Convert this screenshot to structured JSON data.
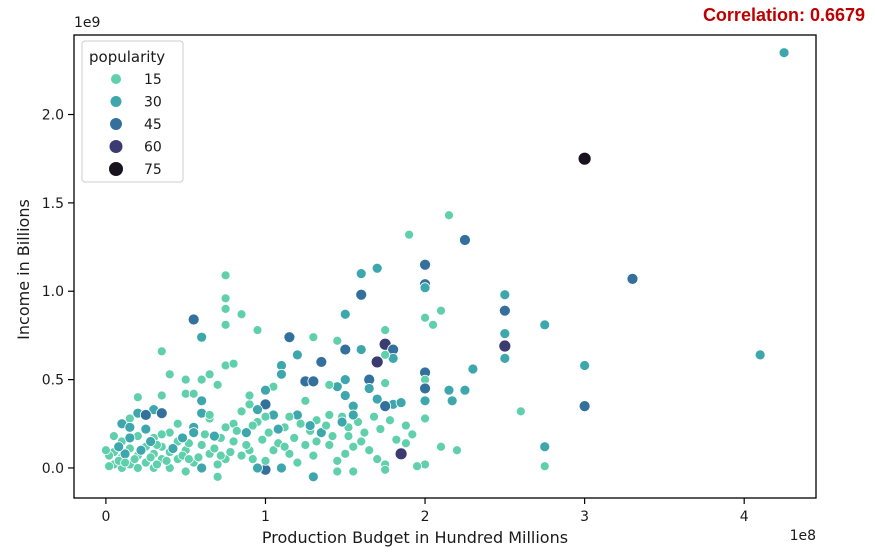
{
  "annotation": "Correlation: 0.6679",
  "chart_data": {
    "type": "scatter",
    "title": "",
    "xlabel": "Production Budget in Hundred Millions",
    "ylabel": "Income in Billions",
    "x_offset_label": "1e8",
    "y_offset_label": "1e9",
    "xlim": [
      -0.2,
      4.45
    ],
    "ylim": [
      -0.17,
      2.45
    ],
    "xticks": [
      0,
      1,
      2,
      3,
      4
    ],
    "xtick_labels": [
      "0",
      "1",
      "2",
      "3",
      "4"
    ],
    "yticks": [
      0,
      0.5,
      1.0,
      1.5,
      2.0
    ],
    "ytick_labels": [
      "0.0",
      "0.5",
      "1.0",
      "1.5",
      "2.0"
    ],
    "grid": false,
    "legend": {
      "title": "popularity",
      "position": "top-left",
      "entries": [
        {
          "label": "15",
          "color": "#5fcfac",
          "size": 7
        },
        {
          "label": "30",
          "color": "#3ea7ad",
          "size": 8
        },
        {
          "label": "45",
          "color": "#33709c",
          "size": 9
        },
        {
          "label": "60",
          "color": "#3b3b72",
          "size": 10
        },
        {
          "label": "75",
          "color": "#18131f",
          "size": 11
        }
      ]
    },
    "points": [
      [
        4.25,
        2.35,
        30
      ],
      [
        3.0,
        1.75,
        75
      ],
      [
        3.3,
        1.07,
        45
      ],
      [
        4.1,
        0.64,
        30
      ],
      [
        2.25,
        1.29,
        45
      ],
      [
        2.15,
        1.43,
        15
      ],
      [
        1.9,
        1.32,
        15
      ],
      [
        2.0,
        1.15,
        45
      ],
      [
        2.0,
        1.04,
        45
      ],
      [
        2.0,
        1.02,
        30
      ],
      [
        2.0,
        0.85,
        15
      ],
      [
        2.05,
        0.81,
        15
      ],
      [
        2.1,
        0.89,
        15
      ],
      [
        1.7,
        1.13,
        30
      ],
      [
        1.6,
        1.1,
        30
      ],
      [
        1.6,
        0.98,
        45
      ],
      [
        1.5,
        0.87,
        30
      ],
      [
        2.5,
        0.98,
        30
      ],
      [
        2.5,
        0.89,
        45
      ],
      [
        2.5,
        0.76,
        30
      ],
      [
        2.5,
        0.69,
        60
      ],
      [
        2.5,
        0.62,
        30
      ],
      [
        2.75,
        0.81,
        30
      ],
      [
        3.0,
        0.58,
        30
      ],
      [
        3.0,
        0.35,
        45
      ],
      [
        2.6,
        0.32,
        15
      ],
      [
        2.75,
        0.12,
        30
      ],
      [
        2.75,
        0.01,
        15
      ],
      [
        2.3,
        0.56,
        30
      ],
      [
        2.25,
        0.44,
        30
      ],
      [
        2.15,
        0.44,
        30
      ],
      [
        2.17,
        0.38,
        30
      ],
      [
        2.2,
        0.1,
        15
      ],
      [
        2.0,
        0.54,
        45
      ],
      [
        2.0,
        0.5,
        15
      ],
      [
        2.0,
        0.45,
        45
      ],
      [
        2.0,
        0.38,
        30
      ],
      [
        2.0,
        0.28,
        15
      ],
      [
        2.0,
        0.02,
        15
      ],
      [
        1.95,
        0.01,
        15
      ],
      [
        2.1,
        0.12,
        15
      ],
      [
        1.85,
        0.08,
        60
      ],
      [
        1.75,
        0.7,
        60
      ],
      [
        1.7,
        0.6,
        60
      ],
      [
        1.8,
        0.67,
        45
      ],
      [
        1.8,
        0.62,
        30
      ],
      [
        1.75,
        0.78,
        15
      ],
      [
        1.75,
        0.64,
        15
      ],
      [
        1.65,
        0.5,
        45
      ],
      [
        1.65,
        0.45,
        30
      ],
      [
        1.75,
        0.48,
        15
      ],
      [
        1.8,
        0.36,
        30
      ],
      [
        1.75,
        0.35,
        45
      ],
      [
        1.85,
        0.37,
        30
      ],
      [
        1.6,
        0.67,
        30
      ],
      [
        1.55,
        0.35,
        30
      ],
      [
        1.5,
        0.67,
        45
      ],
      [
        1.45,
        0.72,
        15
      ],
      [
        1.5,
        0.5,
        30
      ],
      [
        1.5,
        0.41,
        30
      ],
      [
        1.45,
        0.46,
        30
      ],
      [
        1.4,
        0.47,
        15
      ],
      [
        1.35,
        0.6,
        45
      ],
      [
        1.3,
        0.74,
        15
      ],
      [
        1.25,
        0.49,
        45
      ],
      [
        1.3,
        0.49,
        45
      ],
      [
        1.2,
        0.64,
        30
      ],
      [
        1.15,
        0.74,
        45
      ],
      [
        1.1,
        0.58,
        30
      ],
      [
        1.1,
        0.53,
        30
      ],
      [
        1.2,
        0.3,
        30
      ],
      [
        1.05,
        0.46,
        15
      ],
      [
        1.0,
        0.44,
        30
      ],
      [
        1.0,
        0.36,
        45
      ],
      [
        0.95,
        0.33,
        30
      ],
      [
        1.05,
        0.3,
        30
      ],
      [
        1.0,
        0.29,
        15
      ],
      [
        0.95,
        0.26,
        15
      ],
      [
        0.9,
        0.36,
        15
      ],
      [
        0.8,
        0.25,
        15
      ],
      [
        0.75,
        1.09,
        15
      ],
      [
        0.75,
        0.96,
        15
      ],
      [
        0.75,
        0.9,
        15
      ],
      [
        0.75,
        0.81,
        15
      ],
      [
        0.75,
        0.58,
        15
      ],
      [
        0.65,
        0.53,
        15
      ],
      [
        0.55,
        0.84,
        45
      ],
      [
        0.6,
        0.74,
        30
      ],
      [
        0.35,
        0.66,
        15
      ],
      [
        0.4,
        0.53,
        15
      ],
      [
        0.5,
        0.5,
        15
      ],
      [
        0.6,
        0.5,
        15
      ],
      [
        0.7,
        0.47,
        15
      ],
      [
        0.35,
        0.41,
        15
      ],
      [
        0.5,
        0.42,
        15
      ],
      [
        0.55,
        0.42,
        15
      ],
      [
        0.2,
        0.4,
        15
      ],
      [
        0.3,
        0.33,
        30
      ],
      [
        0.35,
        0.31,
        45
      ],
      [
        0.2,
        0.31,
        30
      ],
      [
        0.15,
        0.28,
        15
      ],
      [
        0.1,
        0.25,
        30
      ],
      [
        0.15,
        0.23,
        30
      ],
      [
        0.25,
        0.3,
        45
      ],
      [
        0.6,
        0.38,
        30
      ],
      [
        0.6,
        0.31,
        30
      ],
      [
        0.65,
        0.28,
        15
      ],
      [
        0.55,
        0.23,
        30
      ],
      [
        0.85,
        0.87,
        15
      ],
      [
        0.95,
        0.78,
        15
      ],
      [
        0.8,
        0.59,
        15
      ],
      [
        0.9,
        0.41,
        15
      ],
      [
        1.4,
        0.3,
        15
      ],
      [
        1.35,
        0.2,
        30
      ],
      [
        1.3,
        0.07,
        15
      ],
      [
        1.3,
        -0.05,
        30
      ],
      [
        1.5,
        0.08,
        15
      ],
      [
        1.55,
        0.12,
        15
      ],
      [
        1.55,
        -0.02,
        15
      ],
      [
        1.6,
        0.15,
        15
      ],
      [
        1.65,
        0.1,
        15
      ],
      [
        1.7,
        0.05,
        15
      ],
      [
        1.75,
        0.02,
        15
      ],
      [
        1.75,
        -0.01,
        15
      ],
      [
        1.45,
        0.04,
        15
      ],
      [
        1.45,
        -0.02,
        15
      ],
      [
        1.4,
        0.13,
        15
      ],
      [
        1.25,
        0.13,
        15
      ],
      [
        1.2,
        0.03,
        15
      ],
      [
        1.15,
        0.08,
        15
      ],
      [
        1.1,
        0.0,
        30
      ],
      [
        1.05,
        0.1,
        15
      ],
      [
        1.0,
        -0.01,
        45
      ],
      [
        1.0,
        0.04,
        15
      ],
      [
        0.95,
        0.0,
        30
      ],
      [
        0.9,
        0.1,
        15
      ],
      [
        0.85,
        0.07,
        15
      ],
      [
        0.8,
        0.15,
        15
      ],
      [
        0.75,
        0.05,
        15
      ],
      [
        0.7,
        -0.05,
        15
      ],
      [
        0.7,
        0.02,
        15
      ],
      [
        0.65,
        0.08,
        15
      ],
      [
        0.6,
        0.0,
        30
      ],
      [
        0.6,
        0.13,
        15
      ],
      [
        0.55,
        0.03,
        15
      ],
      [
        0.5,
        0.1,
        15
      ],
      [
        0.5,
        -0.02,
        15
      ],
      [
        0.45,
        0.05,
        15
      ],
      [
        0.45,
        0.15,
        15
      ],
      [
        0.4,
        0.0,
        15
      ],
      [
        0.4,
        0.09,
        15
      ],
      [
        0.4,
        0.2,
        15
      ],
      [
        0.35,
        0.05,
        15
      ],
      [
        0.35,
        0.12,
        15
      ],
      [
        0.3,
        0.0,
        15
      ],
      [
        0.3,
        0.08,
        15
      ],
      [
        0.3,
        0.17,
        15
      ],
      [
        0.25,
        0.03,
        15
      ],
      [
        0.25,
        0.12,
        15
      ],
      [
        0.2,
        0.0,
        15
      ],
      [
        0.2,
        0.07,
        15
      ],
      [
        0.2,
        0.18,
        15
      ],
      [
        0.15,
        0.02,
        15
      ],
      [
        0.15,
        0.11,
        15
      ],
      [
        0.1,
        0.0,
        15
      ],
      [
        0.1,
        0.06,
        15
      ],
      [
        0.1,
        0.15,
        15
      ],
      [
        0.05,
        0.02,
        15
      ],
      [
        0.05,
        0.09,
        15
      ],
      [
        0.05,
        0.18,
        15
      ],
      [
        0.02,
        0.01,
        15
      ],
      [
        0.02,
        0.07,
        15
      ],
      [
        0.0,
        0.1,
        15
      ],
      [
        0.08,
        0.04,
        15
      ],
      [
        0.12,
        0.08,
        30
      ],
      [
        0.18,
        0.05,
        15
      ],
      [
        0.22,
        0.1,
        30
      ],
      [
        0.28,
        0.06,
        15
      ],
      [
        0.32,
        0.13,
        15
      ],
      [
        0.38,
        0.04,
        15
      ],
      [
        0.42,
        0.11,
        30
      ],
      [
        0.48,
        0.07,
        15
      ],
      [
        0.52,
        0.14,
        15
      ],
      [
        0.58,
        0.06,
        15
      ],
      [
        0.62,
        0.19,
        15
      ],
      [
        0.68,
        0.11,
        15
      ],
      [
        0.72,
        0.17,
        15
      ],
      [
        0.78,
        0.09,
        15
      ],
      [
        0.82,
        0.21,
        15
      ],
      [
        0.88,
        0.13,
        15
      ],
      [
        0.92,
        0.24,
        15
      ],
      [
        0.98,
        0.16,
        15
      ],
      [
        1.02,
        0.2,
        15
      ],
      [
        1.08,
        0.14,
        15
      ],
      [
        1.12,
        0.23,
        15
      ],
      [
        1.18,
        0.17,
        15
      ],
      [
        1.22,
        0.25,
        15
      ],
      [
        1.28,
        0.21,
        15
      ],
      [
        1.32,
        0.27,
        15
      ],
      [
        1.38,
        0.24,
        15
      ],
      [
        1.42,
        0.18,
        15
      ],
      [
        1.48,
        0.29,
        15
      ],
      [
        1.52,
        0.23,
        15
      ],
      [
        1.58,
        0.26,
        15
      ],
      [
        1.62,
        0.2,
        15
      ],
      [
        1.68,
        0.29,
        15
      ],
      [
        1.72,
        0.22,
        15
      ],
      [
        1.78,
        0.27,
        15
      ],
      [
        1.82,
        0.16,
        15
      ],
      [
        1.88,
        0.24,
        15
      ],
      [
        1.92,
        0.19,
        15
      ],
      [
        1.88,
        0.14,
        15
      ],
      [
        0.25,
        0.22,
        30
      ],
      [
        0.45,
        0.25,
        15
      ],
      [
        0.65,
        0.3,
        15
      ],
      [
        0.85,
        0.32,
        15
      ],
      [
        0.15,
        0.17,
        30
      ],
      [
        0.35,
        0.19,
        15
      ],
      [
        0.55,
        0.2,
        30
      ],
      [
        0.75,
        0.23,
        15
      ],
      [
        1.15,
        0.29,
        15
      ],
      [
        1.25,
        0.38,
        15
      ],
      [
        1.55,
        0.3,
        30
      ],
      [
        1.7,
        0.39,
        30
      ],
      [
        0.08,
        0.12,
        30
      ],
      [
        0.28,
        0.15,
        30
      ],
      [
        0.48,
        0.17,
        30
      ],
      [
        0.68,
        0.18,
        30
      ],
      [
        0.88,
        0.2,
        30
      ],
      [
        1.08,
        0.22,
        30
      ],
      [
        1.28,
        0.24,
        30
      ],
      [
        1.48,
        0.26,
        30
      ],
      [
        0.12,
        0.03,
        15
      ],
      [
        0.32,
        0.02,
        15
      ],
      [
        0.52,
        0.05,
        15
      ],
      [
        0.72,
        0.07,
        15
      ],
      [
        0.92,
        0.05,
        15
      ],
      [
        1.12,
        0.12,
        15
      ],
      [
        1.32,
        0.15,
        15
      ],
      [
        1.52,
        0.18,
        15
      ]
    ]
  }
}
